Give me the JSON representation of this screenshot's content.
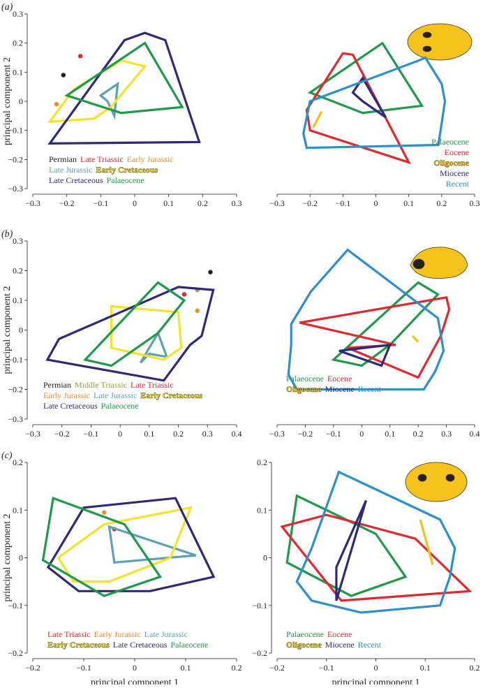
{
  "chart_data": [
    {
      "type": "hull",
      "panel_label": "(a)",
      "ylabel": "principal component 2",
      "legend": "lower left",
      "xlim": [
        -0.3,
        0.3
      ],
      "ylim": [
        -0.3,
        0.3
      ],
      "xticks": [
        {
          "value": -0.3,
          "label": "−0.3"
        },
        {
          "value": -0.2,
          "label": "−0.2"
        },
        {
          "value": -0.1,
          "label": "−0.1"
        },
        0,
        0.1,
        0.2,
        0.3
      ],
      "yticks": [
        {
          "value": -0.3,
          "label": "−0.3"
        },
        {
          "value": -0.2,
          "label": "−0.2"
        },
        {
          "value": -0.1,
          "label": "−0.1"
        },
        0,
        0.1,
        0.2,
        0.3
      ],
      "series": [
        {
          "name": "Permian",
          "color": "#231f20",
          "x": [
            -0.21
          ],
          "y": [
            0.09
          ]
        },
        {
          "name": "Late Triassic",
          "color": "#e0282e",
          "x": [
            -0.16
          ],
          "y": [
            0.155
          ]
        },
        {
          "name": "Early Jurassic",
          "color": "#f08a2c",
          "x": [
            -0.23
          ],
          "y": [
            -0.01
          ]
        },
        {
          "name": "Late Jurassic",
          "color": "#5ba3b0",
          "x": [
            -0.1,
            -0.05,
            -0.06,
            -0.08
          ],
          "y": [
            0.02,
            0.06,
            -0.05,
            0.0
          ]
        },
        {
          "name": "Early Cretaceous",
          "color": "#f7e22a",
          "x": [
            -0.25,
            -0.18,
            -0.04,
            0.03,
            -0.07,
            -0.12
          ],
          "y": [
            -0.07,
            0.04,
            0.14,
            0.12,
            -0.02,
            -0.06
          ]
        },
        {
          "name": "Late Cretaceous",
          "color": "#2e2a7a",
          "x": [
            -0.25,
            -0.03,
            0.03,
            0.09,
            0.19
          ],
          "y": [
            -0.145,
            0.21,
            0.235,
            0.21,
            -0.14
          ]
        },
        {
          "name": "Palaeocene",
          "color": "#1f9a4b",
          "x": [
            -0.2,
            0.03,
            0.14,
            -0.04
          ],
          "y": [
            0.02,
            0.2,
            -0.02,
            -0.04
          ]
        }
      ]
    },
    {
      "type": "hull",
      "legend": "lower right",
      "xlim": [
        -0.3,
        0.3
      ],
      "ylim": [
        -0.3,
        0.3
      ],
      "xticks": [
        {
          "value": -0.3,
          "label": "−0.3"
        },
        {
          "value": -0.2,
          "label": "−0.2"
        },
        {
          "value": -0.1,
          "label": "−0.1"
        },
        0,
        0.1,
        0.2,
        0.3
      ],
      "yticks": [],
      "series": [
        {
          "name": "Palaeocene",
          "color": "#1f9a4b",
          "x": [
            -0.2,
            0.02,
            0.14,
            -0.04
          ],
          "y": [
            0.03,
            0.2,
            -0.015,
            -0.04
          ]
        },
        {
          "name": "Eocene",
          "color": "#e0282e",
          "x": [
            -0.21,
            -0.1,
            -0.07,
            0.1,
            -0.2
          ],
          "y": [
            -0.03,
            0.165,
            0.16,
            -0.21,
            -0.1
          ]
        },
        {
          "name": "Oligocene",
          "color": "#f2c21b",
          "x": [
            -0.19,
            -0.165
          ],
          "y": [
            -0.09,
            -0.035
          ]
        },
        {
          "name": "Miocene",
          "color": "#2e2a7a",
          "x": [
            -0.07,
            -0.04,
            0.03,
            -0.04
          ],
          "y": [
            0.03,
            0.08,
            -0.055,
            0.0
          ]
        },
        {
          "name": "Recent",
          "color": "#2b8fd0",
          "x": [
            -0.21,
            0.19,
            0.21,
            0.2,
            0.15,
            0.13,
            -0.2,
            -0.22
          ],
          "y": [
            -0.16,
            -0.15,
            0.0,
            0.06,
            0.15,
            0.14,
            0.0,
            -0.11
          ]
        }
      ]
    },
    {
      "type": "hull",
      "panel_label": "(b)",
      "ylabel": "principal component 2",
      "legend": "lower left",
      "xlim": [
        -0.3,
        0.4
      ],
      "ylim": [
        -0.3,
        0.3
      ],
      "xticks": [
        {
          "value": -0.3,
          "label": "−0.3"
        },
        {
          "value": -0.2,
          "label": "−0.2"
        },
        {
          "value": -0.1,
          "label": "−0.1"
        },
        0,
        0.1,
        0.2,
        0.3,
        0.4
      ],
      "yticks": [
        {
          "value": -0.3,
          "label": "−0.3"
        },
        {
          "value": -0.2,
          "label": "−0.2"
        },
        {
          "value": -0.1,
          "label": "−0.1"
        },
        0,
        0.1,
        0.2,
        0.3
      ],
      "series": [
        {
          "name": "Permian",
          "color": "#231f20",
          "x": [
            0.31
          ],
          "y": [
            0.195
          ]
        },
        {
          "name": "Middle Triassic",
          "color": "#8ea83c",
          "x": [
            0.265
          ],
          "y": [
            0.135
          ]
        },
        {
          "name": "Late Triassic",
          "color": "#e0282e",
          "x": [
            0.22
          ],
          "y": [
            0.12
          ]
        },
        {
          "name": "Early Jurassic",
          "color": "#f08a2c",
          "x": [
            0.265
          ],
          "y": [
            0.065
          ]
        },
        {
          "name": "Late Jurassic",
          "color": "#5ba3b0",
          "x": [
            0.07,
            0.13,
            0.16,
            0.1
          ],
          "y": [
            -0.11,
            -0.01,
            -0.09,
            -0.08
          ]
        },
        {
          "name": "Early Cretaceous",
          "color": "#f7e22a",
          "x": [
            -0.03,
            0.2,
            0.21,
            0.15,
            -0.03
          ],
          "y": [
            0.08,
            0.06,
            -0.06,
            -0.1,
            -0.06
          ]
        },
        {
          "name": "Late Cretaceous",
          "color": "#2e2a7a",
          "x": [
            -0.25,
            -0.21,
            0.2,
            0.32,
            0.28,
            0.24,
            0.15
          ],
          "y": [
            -0.1,
            -0.03,
            0.145,
            0.135,
            -0.02,
            -0.05,
            -0.17
          ]
        },
        {
          "name": "Palaeocene",
          "color": "#1f9a4b",
          "x": [
            -0.12,
            0.13,
            0.22,
            0.13,
            -0.03
          ],
          "y": [
            -0.1,
            0.16,
            0.1,
            -0.01,
            -0.12
          ]
        }
      ]
    },
    {
      "type": "hull",
      "legend": "lower left",
      "xlim": [
        -0.3,
        0.4
      ],
      "ylim": [
        -0.3,
        0.3
      ],
      "xticks": [
        {
          "value": -0.3,
          "label": "−0.3"
        },
        {
          "value": -0.2,
          "label": "−0.2"
        },
        {
          "value": -0.1,
          "label": "−0.1"
        },
        0,
        0.1,
        0.2,
        0.3,
        0.4
      ],
      "yticks": [],
      "series": [
        {
          "name": "Palaeocene",
          "color": "#1f9a4b",
          "x": [
            -0.1,
            0.2,
            0.27,
            0.1,
            0.0
          ],
          "y": [
            -0.1,
            0.16,
            0.12,
            -0.05,
            -0.12
          ]
        },
        {
          "name": "Eocene",
          "color": "#e0282e",
          "x": [
            -0.22,
            0.3,
            0.31,
            0.28,
            0.2,
            -0.05,
            0.12
          ],
          "y": [
            0.025,
            0.11,
            0.07,
            -0.02,
            -0.16,
            -0.06,
            -0.05
          ]
        },
        {
          "name": "Oligocene",
          "color": "#f2c21b",
          "x": [
            0.18,
            0.2
          ],
          "y": [
            -0.02,
            -0.04
          ]
        },
        {
          "name": "Miocene",
          "color": "#2e2a7a",
          "x": [
            -0.08,
            0.1,
            0.07
          ],
          "y": [
            -0.07,
            -0.05,
            -0.12
          ]
        },
        {
          "name": "Recent",
          "color": "#2b8fd0",
          "x": [
            -0.25,
            -0.25,
            -0.18,
            -0.05,
            0.27,
            0.29,
            0.26,
            0.22,
            -0.23,
            -0.26
          ],
          "y": [
            -0.05,
            0.02,
            0.13,
            0.27,
            0.04,
            -0.07,
            -0.14,
            -0.2,
            -0.2,
            -0.15
          ]
        }
      ]
    },
    {
      "type": "hull",
      "panel_label": "(c)",
      "ylabel": "principal component 2",
      "xlabel": "principal component 1",
      "legend": "lower left",
      "xlim": [
        -0.2,
        0.2
      ],
      "ylim": [
        -0.2,
        0.2
      ],
      "xticks": [
        {
          "value": -0.2,
          "label": "−0.2"
        },
        {
          "value": -0.1,
          "label": "−0.1"
        },
        0,
        0.1,
        0.2
      ],
      "yticks": [
        {
          "value": -0.2,
          "label": "−0.2"
        },
        {
          "value": -0.1,
          "label": "−0.1"
        },
        0,
        0.1,
        0.2
      ],
      "series": [
        {
          "name": "Late Triassic",
          "color": "#e0282e",
          "x": [
            -0.04
          ],
          "y": [
            0.06
          ]
        },
        {
          "name": "Early Jurassic",
          "color": "#f08a2c",
          "x": [
            -0.06
          ],
          "y": [
            0.095
          ]
        },
        {
          "name": "Late Jurassic",
          "color": "#5ba3b0",
          "x": [
            -0.05,
            0.12,
            -0.04
          ],
          "y": [
            0.065,
            0.005,
            -0.01
          ]
        },
        {
          "name": "Early Cretaceous",
          "color": "#f7e22a",
          "x": [
            -0.15,
            -0.06,
            0.11,
            0.07,
            -0.05,
            -0.12
          ],
          "y": [
            0.0,
            0.07,
            0.105,
            0.0,
            -0.05,
            -0.05
          ]
        },
        {
          "name": "Late Cretaceous",
          "color": "#2e2a7a",
          "x": [
            -0.1,
            0.08,
            0.155,
            0.03,
            -0.11,
            -0.17
          ],
          "y": [
            0.105,
            0.125,
            -0.04,
            -0.07,
            -0.07,
            -0.02
          ]
        },
        {
          "name": "Palaeocene",
          "color": "#1f9a4b",
          "x": [
            -0.16,
            -0.02,
            0.05,
            -0.06,
            -0.18
          ],
          "y": [
            0.125,
            0.07,
            -0.04,
            -0.08,
            -0.005
          ]
        }
      ]
    },
    {
      "type": "hull",
      "xlabel": "principal component 1",
      "legend": "lower left",
      "xlim": [
        -0.2,
        0.2
      ],
      "ylim": [
        -0.2,
        0.2
      ],
      "xticks": [
        {
          "value": -0.2,
          "label": "−0.2"
        },
        {
          "value": -0.1,
          "label": "−0.1"
        },
        0,
        0.1,
        0.2
      ],
      "yticks": [
        {
          "value": -0.2,
          "label": "−0.2"
        },
        {
          "value": -0.1,
          "label": "−0.1"
        },
        0,
        0.1,
        0.2
      ],
      "series": [
        {
          "name": "Palaeocene",
          "color": "#1f9a4b",
          "x": [
            -0.16,
            0.0,
            0.06,
            -0.05,
            -0.18
          ],
          "y": [
            0.13,
            0.05,
            -0.04,
            -0.08,
            -0.01
          ]
        },
        {
          "name": "Eocene",
          "color": "#e0282e",
          "x": [
            -0.19,
            -0.1,
            0.08,
            0.19,
            -0.07
          ],
          "y": [
            0.065,
            0.09,
            0.04,
            -0.07,
            -0.09
          ]
        },
        {
          "name": "Oligocene",
          "color": "#f2c21b",
          "x": [
            0.09,
            0.115
          ],
          "y": [
            0.08,
            -0.015
          ]
        },
        {
          "name": "Miocene",
          "color": "#2e2a7a",
          "x": [
            -0.08,
            -0.08,
            -0.02
          ],
          "y": [
            -0.09,
            -0.02,
            0.12
          ]
        },
        {
          "name": "Recent",
          "color": "#2b8fd0",
          "x": [
            -0.075,
            0.13,
            0.16,
            0.15,
            0.13,
            -0.03,
            -0.13,
            -0.16,
            -0.13
          ],
          "y": [
            0.18,
            0.08,
            0.02,
            -0.04,
            -0.1,
            -0.115,
            -0.09,
            -0.05,
            0.02
          ]
        }
      ]
    }
  ]
}
